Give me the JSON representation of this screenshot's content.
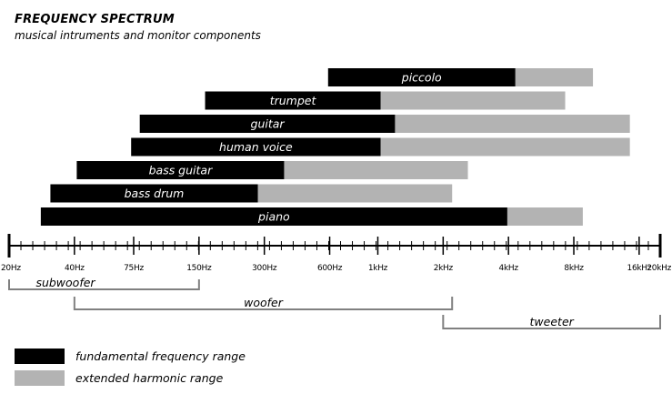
{
  "title": "FREQUENCY SPECTRUM",
  "subtitle": "musical intruments and monitor components",
  "colors": {
    "fundamental": "#000000",
    "harmonic": "#b3b3b3",
    "axis": "#000000",
    "bracket": "#808080"
  },
  "legend": {
    "fundamental": "fundamental frequency range",
    "harmonic": "extended harmonic range"
  },
  "chart_data": {
    "type": "bar",
    "orientation": "horizontal",
    "scale": "log",
    "xlim": [
      20,
      20000
    ],
    "ticks": [
      {
        "value": 20,
        "label": "20Hz"
      },
      {
        "value": 40,
        "label": "40Hz"
      },
      {
        "value": 75,
        "label": "75Hz"
      },
      {
        "value": 150,
        "label": "150Hz"
      },
      {
        "value": 300,
        "label": "300Hz"
      },
      {
        "value": 600,
        "label": "600Hz"
      },
      {
        "value": 1000,
        "label": "1kHz"
      },
      {
        "value": 2000,
        "label": "2kHz"
      },
      {
        "value": 4000,
        "label": "4kHz"
      },
      {
        "value": 8000,
        "label": "8kHz"
      },
      {
        "value": 16000,
        "label": "16kHz"
      },
      {
        "value": 20000,
        "label": "20kHz"
      }
    ],
    "series": [
      {
        "name": "fundamental frequency range",
        "color": "#000000"
      },
      {
        "name": "extended harmonic range",
        "color": "#b3b3b3"
      }
    ],
    "instruments": [
      {
        "label": "piccolo",
        "fundamental": [
          590,
          4300
        ],
        "harmonic_to": 9800
      },
      {
        "label": "trumpet",
        "fundamental": [
          160,
          1030
        ],
        "harmonic_to": 7300
      },
      {
        "label": "guitar",
        "fundamental": [
          80,
          1200
        ],
        "harmonic_to": 14500
      },
      {
        "label": "human voice",
        "fundamental": [
          73,
          1030
        ],
        "harmonic_to": 14500
      },
      {
        "label": "bass guitar",
        "fundamental": [
          41,
          370
        ],
        "harmonic_to": 2600
      },
      {
        "label": "bass drum",
        "fundamental": [
          31,
          280
        ],
        "harmonic_to": 2200
      },
      {
        "label": "piano",
        "fundamental": [
          28,
          3950
        ],
        "harmonic_to": 8800
      }
    ],
    "components": [
      {
        "label": "subwoofer",
        "range": [
          20,
          150
        ]
      },
      {
        "label": "woofer",
        "range": [
          40,
          2200
        ]
      },
      {
        "label": "tweeter",
        "range": [
          2000,
          20000
        ]
      }
    ]
  }
}
